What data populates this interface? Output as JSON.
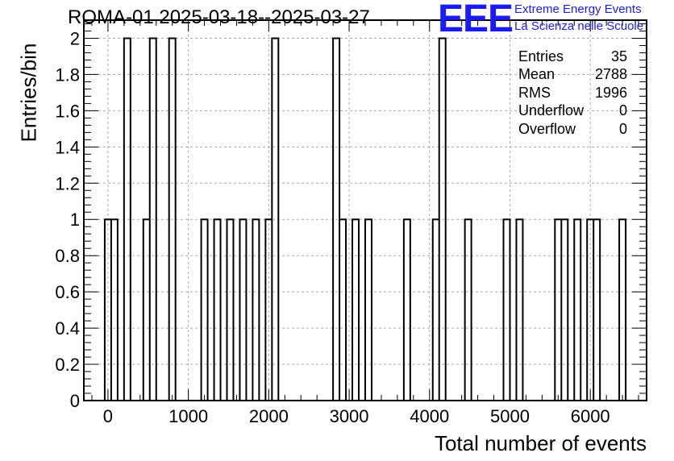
{
  "chart_data": {
    "type": "bar",
    "title": "ROMA-01 2025-03-18--2025-03-27",
    "xlabel": "Total number of events",
    "ylabel": "Entries/bin",
    "xlim": [
      -300,
      6700
    ],
    "ylim": [
      0,
      2.1
    ],
    "xticks": [
      0,
      1000,
      2000,
      3000,
      4000,
      5000,
      6000
    ],
    "yticks": [
      0,
      0.2,
      0.4,
      0.6,
      0.8,
      1,
      1.2,
      1.4,
      1.6,
      1.8,
      2
    ],
    "ytick_labels": [
      "0",
      "0.2",
      "0.4",
      "0.6",
      "0.8",
      "1",
      "1.2",
      "1.4",
      "1.6",
      "1.8",
      "2"
    ],
    "grid": true,
    "bin_width": 80,
    "bins": [
      {
        "x": -40,
        "y": 1
      },
      {
        "x": 40,
        "y": 1
      },
      {
        "x": 200,
        "y": 2
      },
      {
        "x": 440,
        "y": 1
      },
      {
        "x": 520,
        "y": 2
      },
      {
        "x": 760,
        "y": 2
      },
      {
        "x": 1160,
        "y": 1
      },
      {
        "x": 1320,
        "y": 1
      },
      {
        "x": 1480,
        "y": 1
      },
      {
        "x": 1640,
        "y": 1
      },
      {
        "x": 1800,
        "y": 1
      },
      {
        "x": 1960,
        "y": 1
      },
      {
        "x": 2040,
        "y": 2
      },
      {
        "x": 2800,
        "y": 2
      },
      {
        "x": 2880,
        "y": 1
      },
      {
        "x": 3040,
        "y": 1
      },
      {
        "x": 3200,
        "y": 1
      },
      {
        "x": 3680,
        "y": 1
      },
      {
        "x": 4040,
        "y": 1
      },
      {
        "x": 4120,
        "y": 2
      },
      {
        "x": 4440,
        "y": 1
      },
      {
        "x": 4920,
        "y": 1
      },
      {
        "x": 5080,
        "y": 1
      },
      {
        "x": 5560,
        "y": 1
      },
      {
        "x": 5640,
        "y": 1
      },
      {
        "x": 5800,
        "y": 1
      },
      {
        "x": 5960,
        "y": 1
      },
      {
        "x": 6040,
        "y": 1
      },
      {
        "x": 6360,
        "y": 1
      }
    ],
    "stats": [
      {
        "label": "Entries",
        "value": "35"
      },
      {
        "label": "Mean",
        "value": "2788"
      },
      {
        "label": "RMS",
        "value": "1996"
      },
      {
        "label": "Underflow",
        "value": "0"
      },
      {
        "label": "Overflow",
        "value": "0"
      }
    ],
    "colors": {
      "line": "#000000",
      "grid": "#aaaaaa",
      "logo": "#1a1aff"
    }
  },
  "logo": {
    "mark": "EEE",
    "line1": "Extreme Energy Events",
    "line2": "La Scienza nelle Scuole"
  }
}
